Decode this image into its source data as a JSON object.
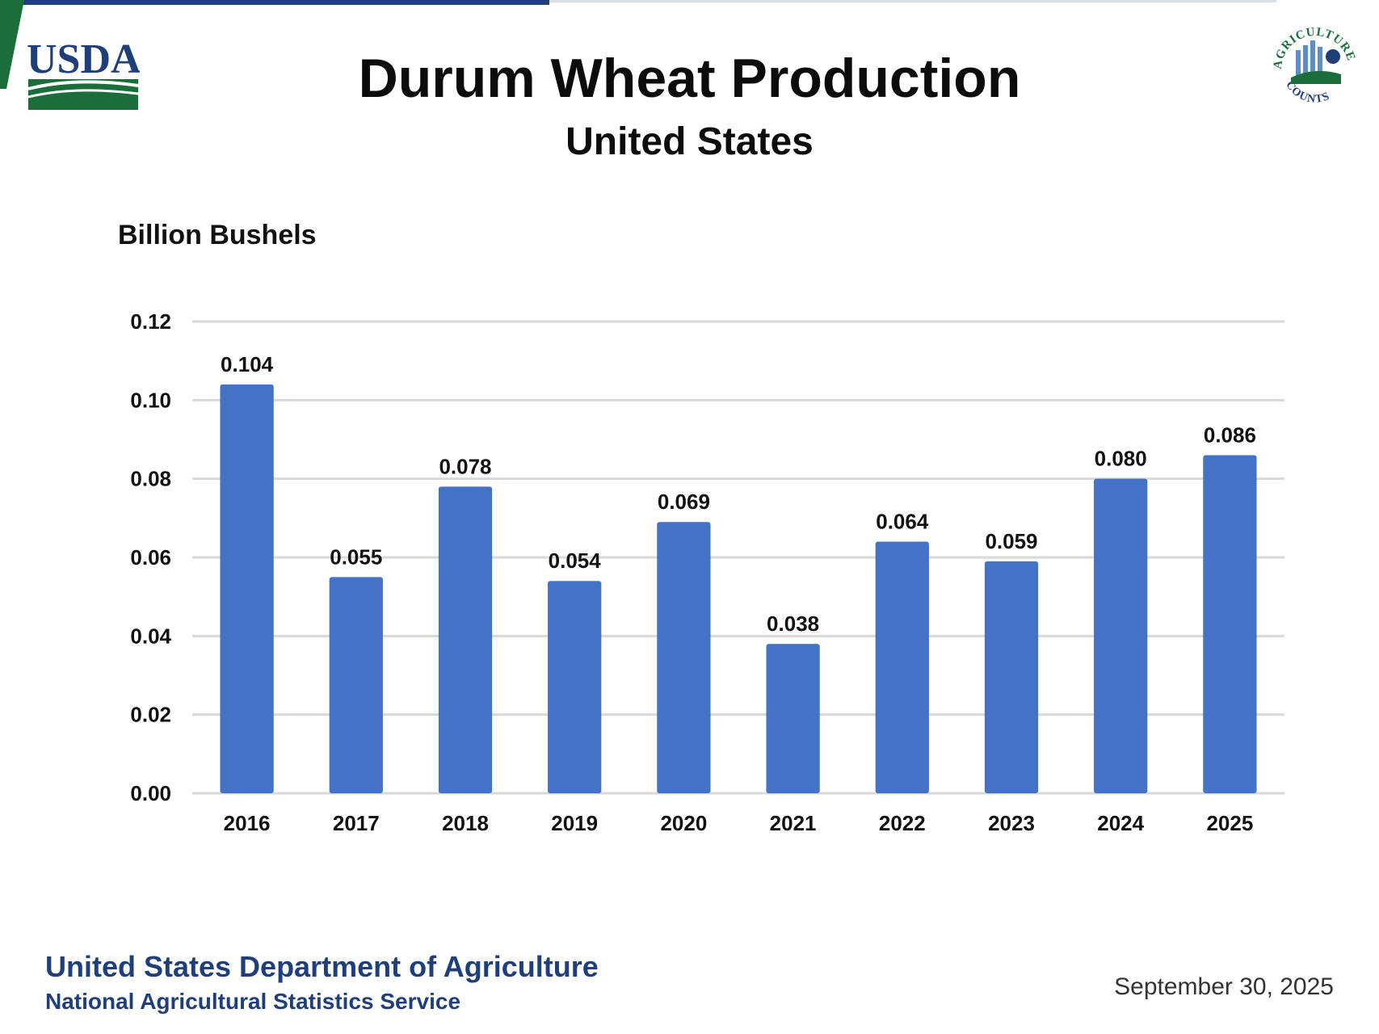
{
  "header": {
    "title": "Durum Wheat Production",
    "subtitle": "United States",
    "usda_logo_text": "USDA",
    "seal_text_top": "AGRICULTURE",
    "seal_text_bottom": "COUNTS"
  },
  "colors": {
    "bar": "#4472c4",
    "grid": "#d9d9d9",
    "brand_blue": "#1f3f7a",
    "brand_green": "#1b6e3a"
  },
  "chart_data": {
    "type": "bar",
    "title": "Durum Wheat Production",
    "subtitle": "United States",
    "ylabel": "Billion Bushels",
    "xlabel": "",
    "categories": [
      "2016",
      "2017",
      "2018",
      "2019",
      "2020",
      "2021",
      "2022",
      "2023",
      "2024",
      "2025"
    ],
    "values": [
      0.104,
      0.055,
      0.078,
      0.054,
      0.069,
      0.038,
      0.064,
      0.059,
      0.08,
      0.086
    ],
    "value_labels": [
      "0.104",
      "0.055",
      "0.078",
      "0.054",
      "0.069",
      "0.038",
      "0.064",
      "0.059",
      "0.080",
      "0.086"
    ],
    "ylim": [
      0,
      0.12
    ],
    "yticks": [
      "0.00",
      "0.02",
      "0.04",
      "0.06",
      "0.08",
      "0.10",
      "0.12"
    ],
    "grid": true,
    "legend": "none"
  },
  "footer": {
    "agency": "United States Department of Agriculture",
    "service": "National Agricultural Statistics Service",
    "date": "September 30, 2025"
  }
}
